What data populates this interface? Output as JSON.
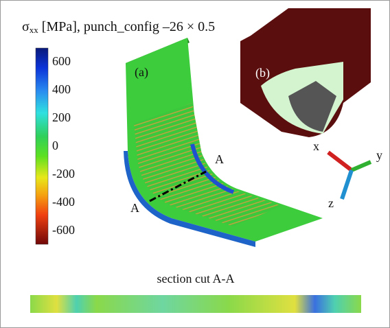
{
  "title": {
    "symbol": "σ",
    "subscript": "xx",
    "rest": " [MPa], punch_config –26 × 0.5"
  },
  "colorbar": {
    "ticks": [
      600,
      400,
      200,
      0,
      -200,
      -400,
      -600
    ]
  },
  "labels": {
    "panel_a": "(a)",
    "panel_b": "(b)",
    "section_start": "A",
    "section_end": "A"
  },
  "axes": {
    "x": "x",
    "y": "y",
    "z": "z"
  },
  "section_caption": "section cut A-A"
}
